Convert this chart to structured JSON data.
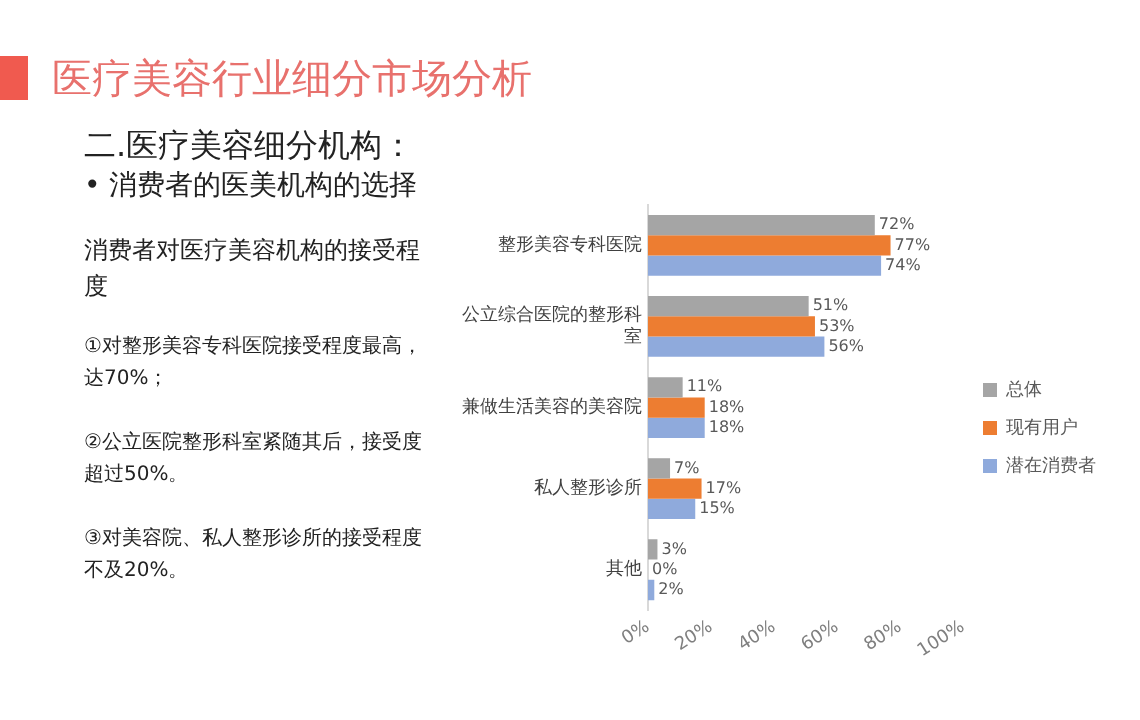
{
  "chart_data": {
    "type": "bar",
    "orientation": "horizontal",
    "title": "医疗美容行业细分市场分析",
    "subtitle": "二.医疗美容细分机构：",
    "annotations": [
      "• 消费者的医美机构的选择",
      "消费者对医疗美容机构的接受程度",
      "①对整形美容专科医院接受程度最高，达70%；",
      "②公立医院整形科室紧随其后，接受度超过50%。",
      "③对美容院、私人整形诊所的接受程度不及20%。"
    ],
    "categories": [
      "整形美容专科医院",
      "公立综合医院的整形科室",
      "兼做生活美容的美容院",
      "私人整形诊所",
      "其他"
    ],
    "series": [
      {
        "name": "总体",
        "color": "#a5a5a5",
        "values": [
          72,
          51,
          11,
          7,
          3
        ],
        "value_labels": [
          "72%",
          "51%",
          "11%",
          "7%",
          "3%"
        ]
      },
      {
        "name": "现有用户",
        "color": "#ed7d31",
        "values": [
          77,
          53,
          18,
          17,
          0
        ],
        "value_labels": [
          "77%",
          "53%",
          "18%",
          "17%",
          "0%"
        ]
      },
      {
        "name": "潜在消费者",
        "color": "#8faadc",
        "values": [
          74,
          56,
          18,
          15,
          2
        ],
        "value_labels": [
          "74%",
          "56%",
          "18%",
          "15%",
          "2%"
        ]
      }
    ],
    "xlim": [
      0,
      100
    ],
    "xticks": [
      {
        "value": 0,
        "label": "0%"
      },
      {
        "value": 20,
        "label": "20%"
      },
      {
        "value": 40,
        "label": "40%"
      },
      {
        "value": 60,
        "label": "60%"
      },
      {
        "value": 80,
        "label": "80%"
      },
      {
        "value": 100,
        "label": "100%"
      }
    ],
    "grid": false,
    "legend": "right"
  }
}
